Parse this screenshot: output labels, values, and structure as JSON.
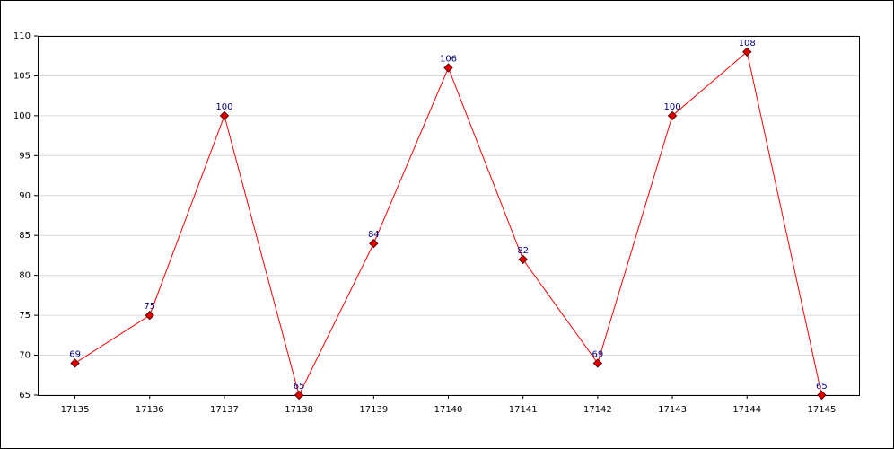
{
  "chart_data": {
    "type": "line",
    "categories": [
      "17135",
      "17136",
      "17137",
      "17138",
      "17139",
      "17140",
      "17141",
      "17142",
      "17143",
      "17144",
      "17145"
    ],
    "values": [
      69,
      75,
      100,
      65,
      84,
      106,
      82,
      69,
      100,
      108,
      65
    ],
    "color": "#ff0000",
    "marker_color": "#e00000",
    "label_color": "#000080",
    "ylim": [
      65,
      110
    ],
    "yticks": [
      65,
      70,
      75,
      80,
      85,
      90,
      95,
      100,
      105,
      110
    ],
    "grid": true
  }
}
